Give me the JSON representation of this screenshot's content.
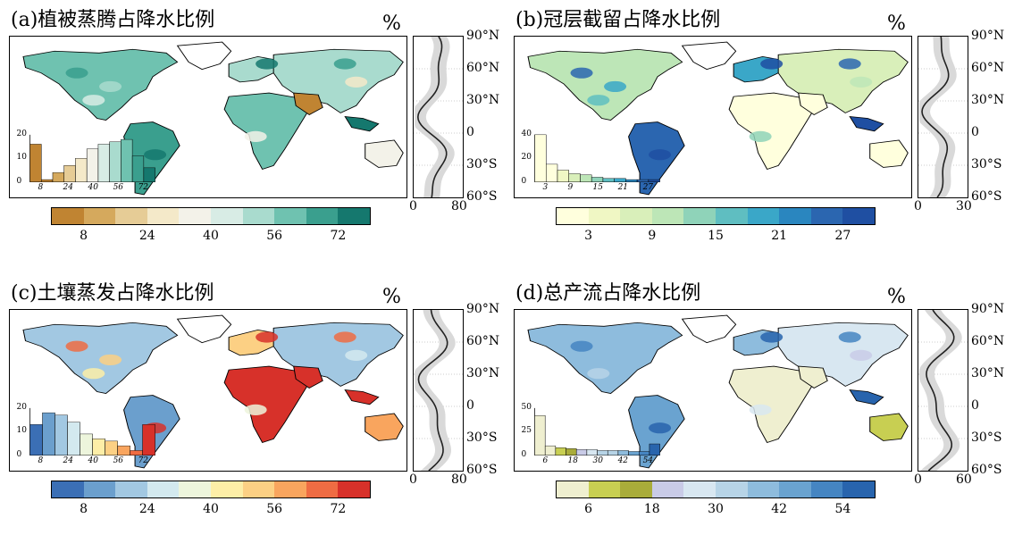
{
  "unit": "%",
  "lat_labels": [
    "90°N",
    "60°N",
    "30°N",
    "0",
    "30°S",
    "60°S"
  ],
  "panels": [
    {
      "id": "a",
      "title": "(a)植被蒸腾占降水比例",
      "colors": [
        "#c08432",
        "#d5a95d",
        "#e6cc96",
        "#f4e9c9",
        "#f3f2e9",
        "#d8ece5",
        "#a9dbce",
        "#6fc2b0",
        "#3a9f8e",
        "#15786e"
      ],
      "land_color": "#6fc2b0",
      "colorbar_ticks": [
        "8",
        "24",
        "40",
        "56",
        "72"
      ],
      "hist_ticks": [
        "8",
        "24",
        "40",
        "56",
        "72"
      ],
      "hist_yticks": [
        "20",
        "10",
        "0"
      ],
      "hist_values": [
        16,
        1,
        4,
        7,
        10,
        14,
        16,
        17,
        18,
        11,
        6
      ],
      "hist_ymax": 20,
      "profile_ticks": [
        "0",
        "80"
      ],
      "profile_xmax": 80
    },
    {
      "id": "b",
      "title": "(b)冠层截留占降水比例",
      "colors": [
        "#ffffdd",
        "#f0f7c4",
        "#d9efba",
        "#bde6b7",
        "#8fd3b9",
        "#5fbec1",
        "#3aa7c8",
        "#2a86bf",
        "#2b66b0",
        "#1f4fa2"
      ],
      "land_color": "#8fd3b9",
      "colorbar_ticks": [
        "3",
        "9",
        "15",
        "21",
        "27"
      ],
      "hist_ticks": [
        "3",
        "9",
        "15",
        "21",
        "27"
      ],
      "hist_yticks": [
        "40",
        "20",
        "0"
      ],
      "hist_values": [
        40,
        15,
        10,
        7,
        6,
        4,
        3,
        3,
        2,
        2,
        2
      ],
      "hist_ymax": 40,
      "profile_ticks": [
        "0",
        "30"
      ],
      "profile_xmax": 30
    },
    {
      "id": "c",
      "title": "(c)土壤蒸发占降水比例",
      "colors": [
        "#3b6fb5",
        "#6b9fcd",
        "#a2c8e2",
        "#d3e9ef",
        "#edf5dc",
        "#fdeea7",
        "#fcd084",
        "#f9a55e",
        "#ef6c43",
        "#d7312a"
      ],
      "land_color": "#a2c8e2",
      "colorbar_ticks": [
        "8",
        "24",
        "40",
        "56",
        "72"
      ],
      "hist_ticks": [
        "8",
        "24",
        "40",
        "56",
        "72"
      ],
      "hist_yticks": [
        "20",
        "10",
        "0"
      ],
      "hist_values": [
        13,
        18,
        17,
        14,
        9,
        7,
        6,
        4,
        2,
        13
      ],
      "hist_ymax": 20,
      "profile_ticks": [
        "0",
        "80"
      ],
      "profile_xmax": 80
    },
    {
      "id": "d",
      "title": "(d)总产流占降水比例",
      "colors": [
        "#efefd0",
        "#c8cf52",
        "#a9ac3a",
        "#c9cbe7",
        "#d8e7f1",
        "#b7d4e7",
        "#8ebcdd",
        "#6aa3d0",
        "#4585c2",
        "#2864ad"
      ],
      "land_color": "#d8e7f1",
      "colorbar_ticks": [
        "6",
        "18",
        "30",
        "42",
        "54"
      ],
      "hist_ticks": [
        "6",
        "18",
        "30",
        "42",
        "54"
      ],
      "hist_yticks": [
        "50",
        "25",
        "0"
      ],
      "hist_values": [
        42,
        10,
        8,
        7,
        6,
        6,
        5,
        5,
        5,
        4,
        4,
        12
      ],
      "hist_ymax": 50,
      "profile_ticks": [
        "0",
        "60"
      ],
      "profile_xmax": 60
    }
  ]
}
